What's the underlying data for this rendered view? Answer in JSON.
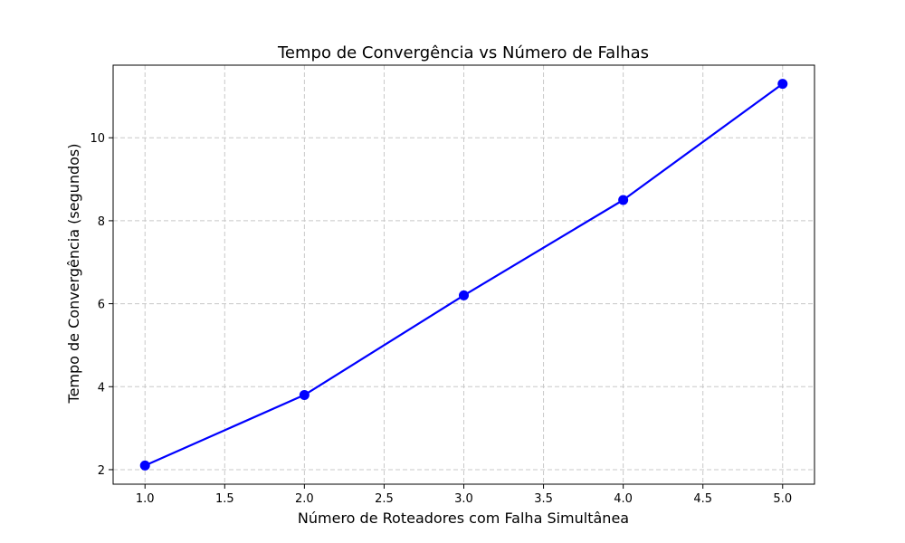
{
  "chart_data": {
    "type": "line",
    "title": "Tempo de Convergência vs Número de Falhas",
    "xlabel": "Número de Roteadores com Falha Simultânea",
    "ylabel": "Tempo de Convergência (segundos)",
    "xlim": [
      0.8,
      5.2
    ],
    "ylim": [
      1.65,
      11.75
    ],
    "xticks": [
      1.0,
      1.5,
      2.0,
      2.5,
      3.0,
      3.5,
      4.0,
      4.5,
      5.0
    ],
    "xtick_labels": [
      "1.0",
      "1.5",
      "2.0",
      "2.5",
      "3.0",
      "3.5",
      "4.0",
      "4.5",
      "5.0"
    ],
    "yticks": [
      2,
      4,
      6,
      8,
      10
    ],
    "ytick_labels": [
      "2",
      "4",
      "6",
      "8",
      "10"
    ],
    "grid": true,
    "series": [
      {
        "color": "#0000ff",
        "marker": "circle",
        "x": [
          1,
          2,
          3,
          4,
          5
        ],
        "y": [
          2.1,
          3.8,
          6.2,
          8.5,
          11.3
        ]
      }
    ]
  }
}
